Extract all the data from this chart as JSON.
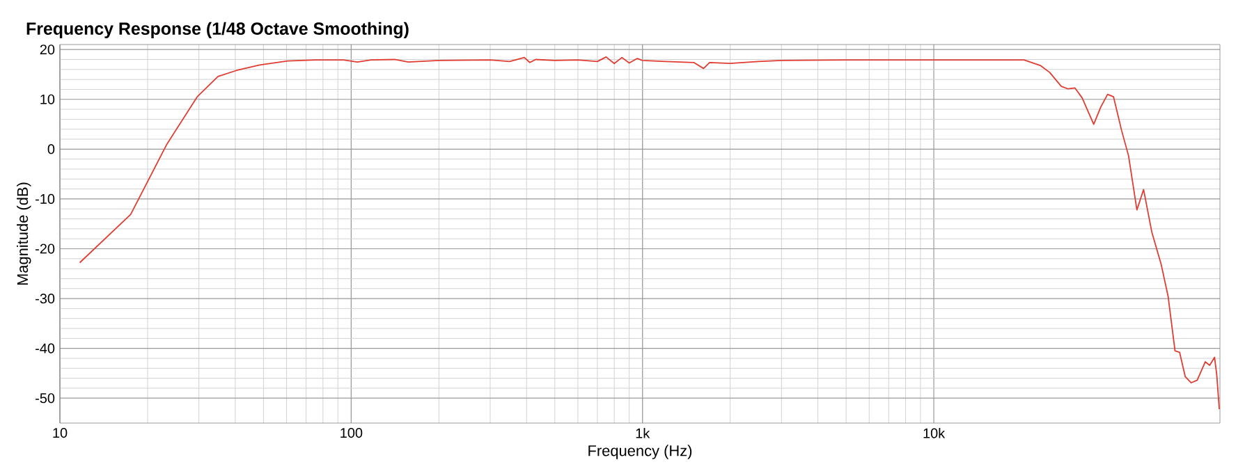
{
  "chart_data": {
    "type": "line",
    "title": "Frequency Response (1/48 Octave Smoothing)",
    "xlabel": "Frequency (Hz)",
    "ylabel": "Magnitude (dB)",
    "log": "x",
    "grid": true,
    "xlim": [
      10,
      96000
    ],
    "ylim": [
      -55,
      21
    ],
    "xticks": [
      10,
      100,
      {
        "value": 1000,
        "label": "1k"
      },
      {
        "value": 10000,
        "label": "10k"
      }
    ],
    "yticks": [
      -50,
      -40,
      -30,
      -20,
      -10,
      0,
      10,
      20
    ],
    "series": [
      {
        "color": "#e03c31",
        "x": [
          11.7,
          17.5,
          23.3,
          29.6,
          34.9,
          40.4,
          48.5,
          60.5,
          75.5,
          94,
          105,
          117,
          141,
          157,
          200,
          300,
          350,
          393,
          410,
          430,
          500,
          600,
          700,
          750,
          800,
          850,
          900,
          960,
          1000,
          1200,
          1500,
          1620,
          1700,
          2000,
          2500,
          3000,
          5000,
          10000,
          20400,
          23200,
          25000,
          27400,
          28900,
          30500,
          32300,
          35400,
          37400,
          39500,
          41400,
          44100,
          46600,
          49800,
          52500,
          56000,
          60300,
          63700,
          67300,
          69800,
          73000,
          76500,
          80200,
          85500,
          88500,
          92000,
          93600,
          95500
        ],
        "values": [
          -22.8,
          -13.1,
          1.0,
          10.5,
          14.6,
          15.8,
          16.9,
          17.7,
          17.9,
          17.9,
          17.5,
          17.9,
          18.0,
          17.5,
          17.8,
          17.9,
          17.6,
          18.4,
          17.4,
          18.0,
          17.8,
          17.9,
          17.6,
          18.5,
          17.2,
          18.4,
          17.3,
          18.2,
          17.8,
          17.6,
          17.4,
          16.2,
          17.4,
          17.2,
          17.6,
          17.8,
          17.9,
          17.9,
          17.9,
          16.8,
          15.4,
          12.6,
          12.1,
          12.3,
          10.3,
          5.0,
          8.4,
          11.0,
          10.5,
          3.8,
          -1.3,
          -12.2,
          -8.1,
          -16.6,
          -23.1,
          -29.5,
          -40.5,
          -40.8,
          -45.7,
          -46.9,
          -46.4,
          -42.7,
          -43.4,
          -41.8,
          -45.3,
          -52.2
        ]
      }
    ]
  }
}
